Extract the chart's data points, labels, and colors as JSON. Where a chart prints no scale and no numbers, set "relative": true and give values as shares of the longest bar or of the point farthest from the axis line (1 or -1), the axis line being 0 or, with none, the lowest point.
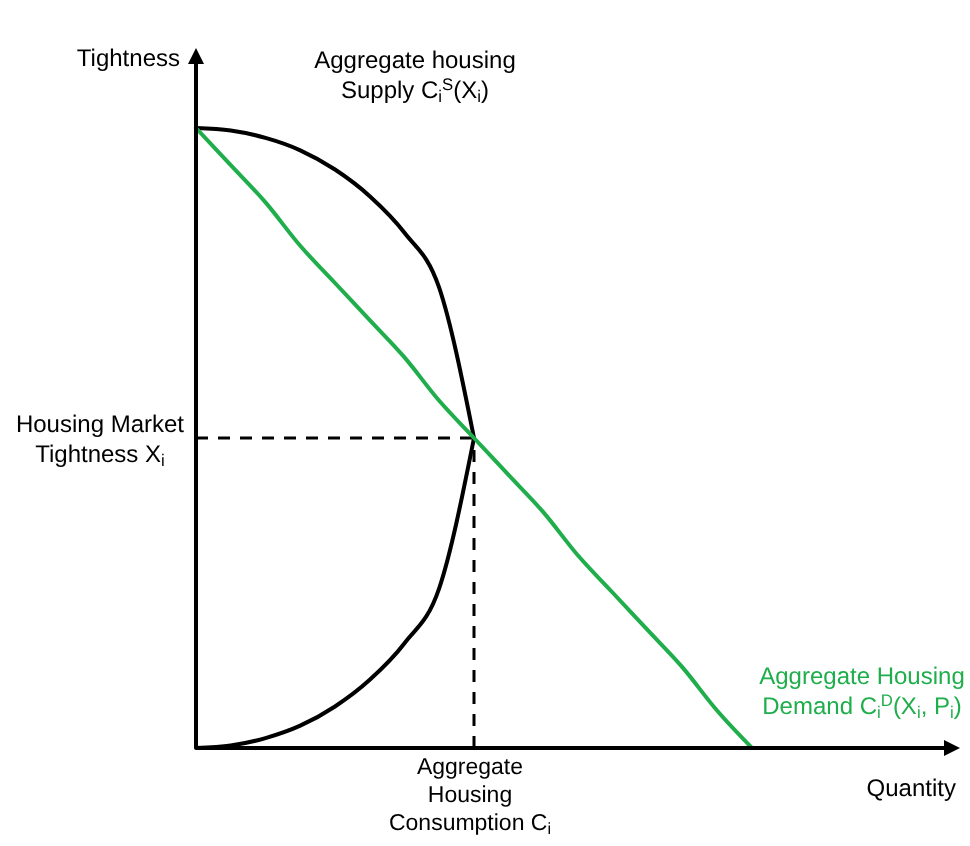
{
  "chart_data": {
    "type": "line",
    "relative": true,
    "legend": false,
    "marker": "none",
    "line_style": "solid",
    "xlabel": "Quantity",
    "ylabel": "Tightness",
    "categories": [
      null,
      null,
      null,
      null,
      null,
      null,
      null,
      null,
      null,
      null,
      null,
      null,
      null,
      null,
      null,
      null,
      null
    ],
    "series": [
      {
        "name": "Aggregate housing\nSupply C$_{i}$$^{S}$(X$_{i}$)",
        "color": "#000000",
        "values": [
          1,
          0.996,
          0.984,
          0.964,
          0.933,
          0.89,
          0.831,
          0.742,
          0.5,
          null,
          null,
          null,
          null,
          null,
          null,
          null,
          null
        ]
      },
      {
        "color": "#000000",
        "values": [
          0,
          0.004,
          0.016,
          0.036,
          0.067,
          0.11,
          0.169,
          0.258,
          0.5,
          null,
          null,
          null,
          null,
          null,
          null,
          null,
          null
        ]
      },
      {
        "name": "Aggregate Housing\nDemand C$_{i}$$^{D}$(X$_{i}$, P$_{i}$)",
        "color": "#1fae4b",
        "values": [
          1,
          0.94,
          0.88,
          0.81,
          0.75,
          0.69,
          0.63,
          0.56,
          0.5,
          0.44,
          0.38,
          0.31,
          0.25,
          0.19,
          0.13,
          0.06,
          0
        ]
      }
    ],
    "ref_lines": [
      {
        "axis": "y",
        "value": 0.5,
        "label": "Housing Market\nTightness X$_{i}$",
        "color": "#000000",
        "line_style": "dashed"
      },
      {
        "axis": "x",
        "label": "Aggregate\nHousing\nConsumption C$_{i}$",
        "color": "#000000",
        "line_style": "dashed"
      }
    ]
  }
}
